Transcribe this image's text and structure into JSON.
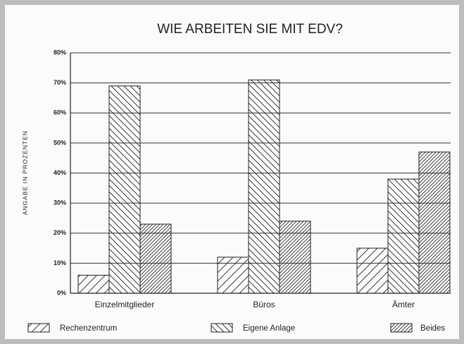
{
  "chart_data": {
    "type": "bar",
    "title": "WIE ARBEITEN SIE MIT EDV?",
    "y_label": "ANGABE IN PROZENTEN",
    "categories": [
      "Einzelmitglieder",
      "Büros",
      "Ämter"
    ],
    "series": [
      {
        "name": "Rechenzentrum",
        "color": "#222222",
        "values": [
          6,
          12,
          15
        ]
      },
      {
        "name": "Eigene Anlage",
        "color": "#222222",
        "values": [
          69,
          71,
          38
        ]
      },
      {
        "name": "Beides",
        "color": "#222222",
        "values": [
          23,
          24,
          47
        ]
      }
    ],
    "ylim": [
      0,
      80
    ],
    "yticks": [
      {
        "value": 0,
        "label": "0%"
      },
      {
        "value": 10,
        "label": "10%"
      },
      {
        "value": 20,
        "label": "20%"
      },
      {
        "value": 30,
        "label": "30%"
      },
      {
        "value": 40,
        "label": "40%"
      },
      {
        "value": 50,
        "label": "50%"
      },
      {
        "value": 60,
        "label": "60%"
      },
      {
        "value": 70,
        "label": "70%"
      },
      {
        "value": 80,
        "label": "80%"
      }
    ],
    "grid": true,
    "legend": "bottom"
  }
}
